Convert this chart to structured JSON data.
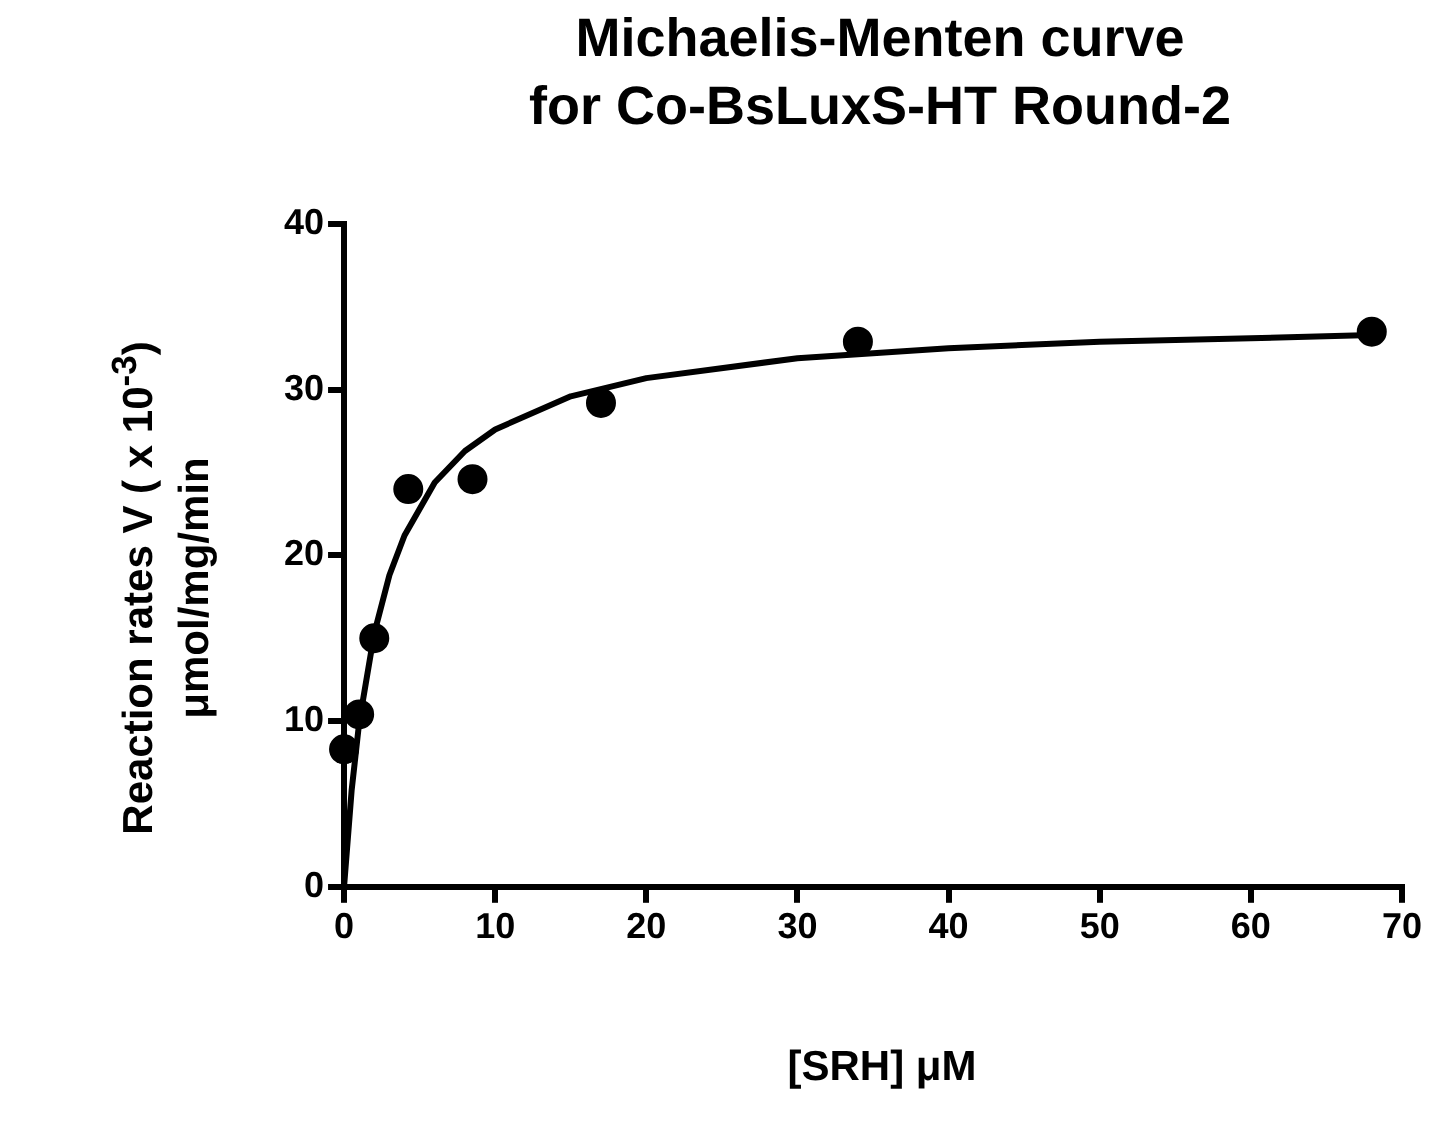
{
  "chart_data": {
    "type": "scatter",
    "title": "Michaelis-Menten curve\nfor Co-BsLuxS-HT Round-2",
    "xlabel": "[SRH] μM",
    "ylabel": "Reaction rates V ( x 10$^{-3}$)\nμmol/mg/min",
    "xlim": [
      0,
      70
    ],
    "xticks": [
      0,
      10,
      20,
      30,
      40,
      50,
      60,
      70
    ],
    "ylim": [
      0,
      40
    ],
    "yticks": [
      0,
      10,
      20,
      30,
      40
    ],
    "grid": false,
    "legend": false,
    "marker": "circle",
    "series": [
      {
        "color": "#000000",
        "x": [
          0,
          1,
          2,
          4.25,
          8.5,
          17,
          34,
          68
        ],
        "values": [
          8.3,
          10.4,
          15,
          24,
          24.6,
          29.2,
          32.9,
          33.5
        ]
      },
      {
        "type": "line",
        "color": "#000000",
        "marker": "none",
        "line_style": "solid",
        "x": [
          0,
          0.5,
          1,
          2,
          3,
          4,
          6,
          8,
          10,
          15,
          20,
          30,
          40,
          50,
          60,
          68
        ],
        "values": [
          0,
          5.8,
          9.9,
          15.3,
          18.8,
          21.2,
          24.4,
          26.3,
          27.6,
          29.6,
          30.7,
          31.9,
          32.5,
          32.9,
          33.1,
          33.3
        ]
      }
    ]
  }
}
